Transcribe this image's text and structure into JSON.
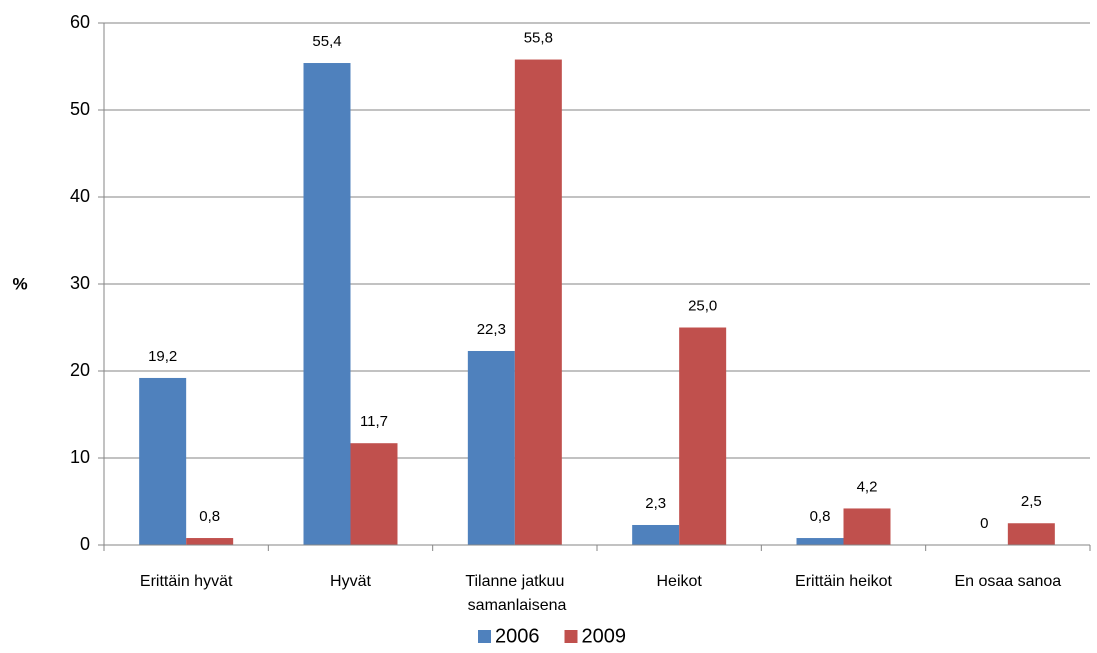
{
  "chart_data": {
    "type": "bar",
    "y_label": "%",
    "categories": [
      "Erittäin hyvät",
      "Hyvät",
      "Tilanne jatkuu samanlaisena",
      "Heikot",
      "Erittäin heikot",
      "En osaa sanoa"
    ],
    "series": [
      {
        "name": "2006",
        "color": "#4f81bd",
        "values": [
          19.2,
          55.4,
          22.3,
          2.3,
          0.8,
          0
        ],
        "value_labels": [
          "19,2",
          "55,4",
          "22,3",
          "2,3",
          "0,8",
          "0"
        ]
      },
      {
        "name": "2009",
        "color": "#c0504d",
        "values": [
          0.8,
          11.7,
          55.8,
          25.0,
          4.2,
          2.5
        ],
        "value_labels": [
          "0,8",
          "11,7",
          "55,8",
          "25,0",
          "4,2",
          "2,5"
        ]
      }
    ],
    "ylim": [
      0,
      60
    ],
    "yticks": [
      0,
      10,
      20,
      30,
      40,
      50,
      60
    ],
    "grid": true,
    "legend": "bottom"
  }
}
